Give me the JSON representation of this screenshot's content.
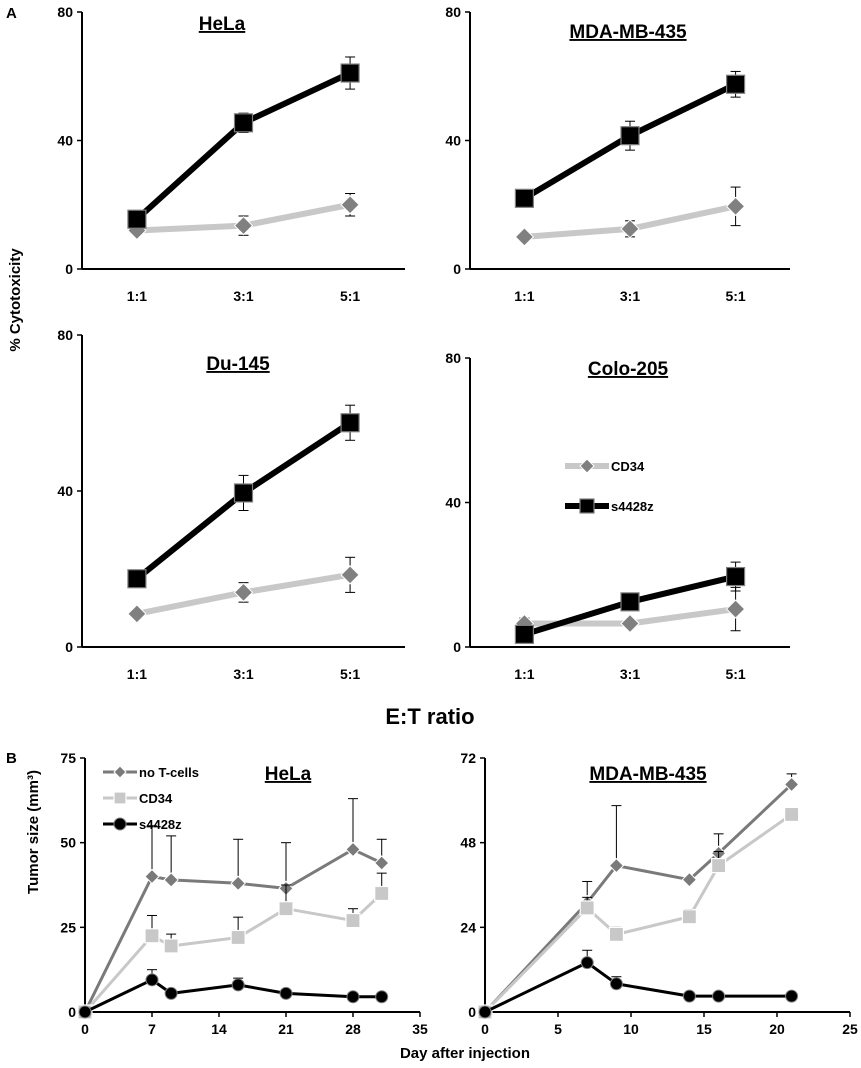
{
  "figure": {
    "panel_a_label": "A",
    "panel_b_label": "B",
    "a_ylabel": "% Cytotoxicity",
    "a_xlabel": "E:T ratio",
    "b_ylabel": "Tumor size (mm³)",
    "b_xlabel": "Day after injection"
  },
  "colors": {
    "cd34": "#c8c8c8",
    "s4428z": "#000000",
    "no_tcells": "#7a7a7a"
  },
  "chart_data": [
    {
      "id": "hela-a",
      "type": "line",
      "title": "HeLa",
      "categories": [
        "1:1",
        "3:1",
        "5:1"
      ],
      "ylim": [
        0,
        80
      ],
      "yticks": [
        0,
        40,
        80
      ],
      "series": [
        {
          "name": "CD34",
          "values": [
            12,
            13.5,
            20
          ],
          "errors": [
            1,
            3,
            3.5
          ]
        },
        {
          "name": "s4428z",
          "values": [
            15.5,
            45.5,
            61
          ],
          "errors": [
            1,
            3,
            5
          ]
        }
      ]
    },
    {
      "id": "mda-a",
      "type": "line",
      "title": "MDA-MB-435",
      "categories": [
        "1:1",
        "3:1",
        "5:1"
      ],
      "ylim": [
        0,
        80
      ],
      "yticks": [
        0,
        40,
        80
      ],
      "series": [
        {
          "name": "CD34",
          "values": [
            10,
            12.5,
            19.5
          ],
          "errors": [
            0.5,
            2.5,
            6
          ]
        },
        {
          "name": "s4428z",
          "values": [
            22,
            41.5,
            57.5
          ],
          "errors": [
            1,
            4.5,
            4
          ]
        }
      ]
    },
    {
      "id": "du-a",
      "type": "line",
      "title": "Du-145",
      "categories": [
        "1:1",
        "3:1",
        "5:1"
      ],
      "ylim": [
        0,
        80
      ],
      "yticks": [
        0,
        40,
        80
      ],
      "series": [
        {
          "name": "CD34",
          "values": [
            8.5,
            14,
            18.5
          ],
          "errors": [
            0.5,
            2.5,
            4.5
          ]
        },
        {
          "name": "s4428z",
          "values": [
            17.5,
            39.5,
            57.5
          ],
          "errors": [
            1,
            4.5,
            4.5
          ]
        }
      ]
    },
    {
      "id": "colo-a",
      "type": "line",
      "title": "Colo-205",
      "categories": [
        "1:1",
        "3:1",
        "5:1"
      ],
      "ylim": [
        0,
        80
      ],
      "yticks": [
        0,
        40,
        80
      ],
      "legend": [
        "CD34",
        "s4428z"
      ],
      "series": [
        {
          "name": "CD34",
          "values": [
            6.5,
            6.5,
            10.5
          ],
          "errors": [
            1.5,
            1,
            6
          ]
        },
        {
          "name": "s4428z",
          "values": [
            3.5,
            12.5,
            19.5
          ],
          "errors": [
            1,
            1,
            4
          ]
        }
      ]
    },
    {
      "id": "hela-b",
      "type": "line",
      "title": "HeLa",
      "xlim": [
        0,
        35
      ],
      "xticks": [
        0,
        7,
        14,
        21,
        28,
        35
      ],
      "ylim": [
        0,
        75
      ],
      "yticks": [
        0,
        25,
        50,
        75
      ],
      "legend": [
        "no T-cells",
        "CD34",
        "s4428z"
      ],
      "series": [
        {
          "name": "no T-cells",
          "x": [
            0,
            7,
            9,
            16,
            21,
            28,
            31
          ],
          "values": [
            0,
            40,
            39,
            38,
            36.5,
            48,
            44
          ],
          "errors": [
            0,
            15,
            13,
            13,
            13.5,
            15,
            7
          ]
        },
        {
          "name": "CD34",
          "x": [
            0,
            7,
            9,
            16,
            21,
            28,
            31
          ],
          "values": [
            0,
            22.5,
            19.5,
            22,
            30.5,
            27,
            35
          ],
          "errors": [
            0,
            6,
            3.5,
            6,
            7,
            3.5,
            6
          ]
        },
        {
          "name": "s4428z",
          "x": [
            0,
            7,
            9,
            16,
            21,
            28,
            31
          ],
          "values": [
            0,
            9.5,
            5.5,
            8,
            5.5,
            4.5,
            4.5
          ],
          "errors": [
            0,
            3,
            1,
            2,
            1,
            0.5,
            0.5
          ]
        }
      ]
    },
    {
      "id": "mda-b",
      "type": "line",
      "title": "MDA-MB-435",
      "xlim": [
        0,
        25
      ],
      "xticks": [
        0,
        5,
        10,
        15,
        20,
        25
      ],
      "ylim": [
        0,
        72
      ],
      "yticks": [
        0,
        24,
        48,
        72
      ],
      "series": [
        {
          "name": "no T-cells",
          "x": [
            0,
            7,
            9,
            14,
            16,
            21
          ],
          "values": [
            0,
            31,
            41.5,
            37.5,
            45,
            64.5
          ],
          "errors": [
            0,
            6,
            17,
            0.5,
            5.5,
            3
          ]
        },
        {
          "name": "CD34",
          "x": [
            0,
            7,
            9,
            14,
            16,
            21
          ],
          "values": [
            0,
            29.5,
            22,
            27,
            41.5,
            56
          ],
          "errors": [
            0,
            3,
            2,
            2,
            4,
            1
          ]
        },
        {
          "name": "s4428z",
          "x": [
            0,
            7,
            9,
            14,
            16,
            21
          ],
          "values": [
            0,
            14,
            8,
            4.5,
            4.5,
            4.5
          ],
          "errors": [
            0,
            3.5,
            2,
            0.5,
            0.5,
            0.5
          ]
        }
      ]
    }
  ]
}
